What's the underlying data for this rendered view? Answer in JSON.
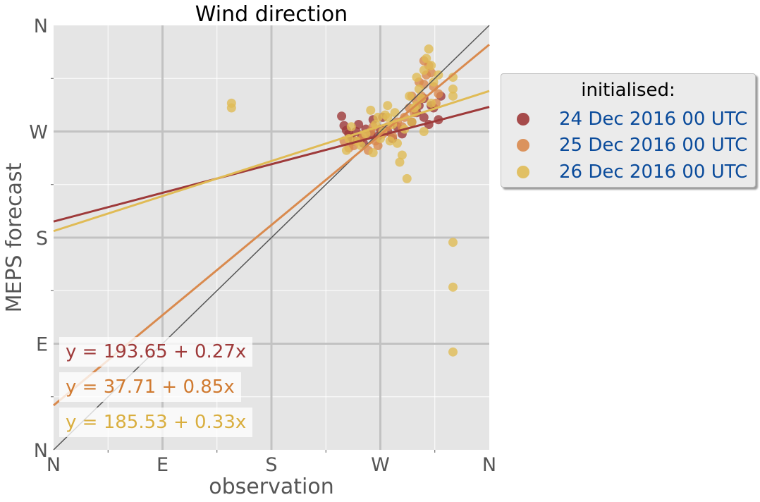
{
  "chart_data": {
    "type": "scatter",
    "title": "Wind direction",
    "xlabel": "observation",
    "ylabel": "MEPS forecast",
    "xlim": [
      0,
      360
    ],
    "ylim": [
      0,
      360
    ],
    "ticks": [
      0,
      90,
      180,
      270,
      360
    ],
    "tick_labels": [
      "N",
      "E",
      "S",
      "W",
      "N"
    ],
    "grid": true,
    "legend": {
      "title": "initialised:",
      "placement": "right-outside-top",
      "entries": [
        "24 Dec 2016 00 UTC",
        "25 Dec 2016 00 UTC",
        "26 Dec 2016 00 UTC"
      ]
    },
    "series": [
      {
        "name": "24 Dec 2016 00 UTC",
        "color": "#9e3a3a",
        "fit": {
          "intercept": 193.65,
          "slope": 0.27
        },
        "equation": "y = 193.65 + 0.27x",
        "points": [
          [
            238,
            283
          ],
          [
            240,
            275
          ],
          [
            242,
            271
          ],
          [
            244,
            268
          ],
          [
            246,
            265
          ],
          [
            248,
            262
          ],
          [
            250,
            270
          ],
          [
            252,
            276
          ],
          [
            254,
            264
          ],
          [
            256,
            260
          ],
          [
            258,
            272
          ],
          [
            262,
            268
          ],
          [
            264,
            280
          ],
          [
            268,
            266
          ],
          [
            270,
            272
          ],
          [
            272,
            282
          ],
          [
            276,
            270
          ],
          [
            280,
            264
          ],
          [
            284,
            274
          ],
          [
            288,
            268
          ],
          [
            296,
            278
          ],
          [
            300,
            286
          ],
          [
            302,
            292
          ],
          [
            306,
            282
          ],
          [
            310,
            276
          ],
          [
            314,
            290
          ],
          [
            318,
            280
          ],
          [
            320,
            300
          ],
          [
            306,
            298
          ],
          [
            312,
            292
          ]
        ]
      },
      {
        "name": "25 Dec 2016 00 UTC",
        "color": "#d98a4e",
        "fit": {
          "intercept": 37.71,
          "slope": 0.85
        },
        "equation": "y = 37.71 + 0.85x",
        "points": [
          [
            240,
            262
          ],
          [
            244,
            256
          ],
          [
            248,
            258
          ],
          [
            252,
            262
          ],
          [
            256,
            266
          ],
          [
            260,
            254
          ],
          [
            262,
            270
          ],
          [
            266,
            262
          ],
          [
            268,
            258
          ],
          [
            272,
            268
          ],
          [
            276,
            274
          ],
          [
            280,
            266
          ],
          [
            284,
            278
          ],
          [
            290,
            282
          ],
          [
            294,
            290
          ],
          [
            298,
            286
          ],
          [
            300,
            296
          ],
          [
            304,
            300
          ],
          [
            306,
            310
          ],
          [
            308,
            318
          ],
          [
            310,
            326
          ],
          [
            312,
            320
          ],
          [
            306,
            330
          ],
          [
            314,
            308
          ],
          [
            316,
            294
          ],
          [
            318,
            302
          ],
          [
            302,
            312
          ],
          [
            296,
            300
          ],
          [
            288,
            274
          ],
          [
            264,
            274
          ]
        ]
      },
      {
        "name": "26 Dec 2016 00 UTC",
        "color": "#e0bb55",
        "fit": {
          "intercept": 185.53,
          "slope": 0.33
        },
        "equation": "y = 185.53 + 0.33x",
        "points": [
          [
            147,
            294
          ],
          [
            147,
            290
          ],
          [
            242,
            254
          ],
          [
            244,
            264
          ],
          [
            246,
            274
          ],
          [
            250,
            262
          ],
          [
            254,
            258
          ],
          [
            258,
            268
          ],
          [
            262,
            288
          ],
          [
            264,
            252
          ],
          [
            266,
            276
          ],
          [
            268,
            282
          ],
          [
            270,
            264
          ],
          [
            272,
            270
          ],
          [
            274,
            284
          ],
          [
            276,
            292
          ],
          [
            278,
            262
          ],
          [
            280,
            276
          ],
          [
            284,
            260
          ],
          [
            286,
            244
          ],
          [
            288,
            250
          ],
          [
            290,
            272
          ],
          [
            292,
            230
          ],
          [
            294,
            300
          ],
          [
            296,
            278
          ],
          [
            298,
            290
          ],
          [
            300,
            316
          ],
          [
            302,
            306
          ],
          [
            304,
            298
          ],
          [
            306,
            322
          ],
          [
            308,
            332
          ],
          [
            310,
            340
          ],
          [
            312,
            326
          ],
          [
            314,
            312
          ],
          [
            318,
            318
          ],
          [
            330,
            306
          ],
          [
            330,
            316
          ],
          [
            330,
            300
          ],
          [
            330,
            176
          ],
          [
            330,
            138
          ],
          [
            330,
            83
          ],
          [
            312,
            294
          ],
          [
            306,
            270
          ],
          [
            300,
            292
          ],
          [
            282,
            286
          ],
          [
            276,
            282
          ]
        ]
      }
    ],
    "reference_line": {
      "type": "identity",
      "color": "#555555"
    }
  }
}
